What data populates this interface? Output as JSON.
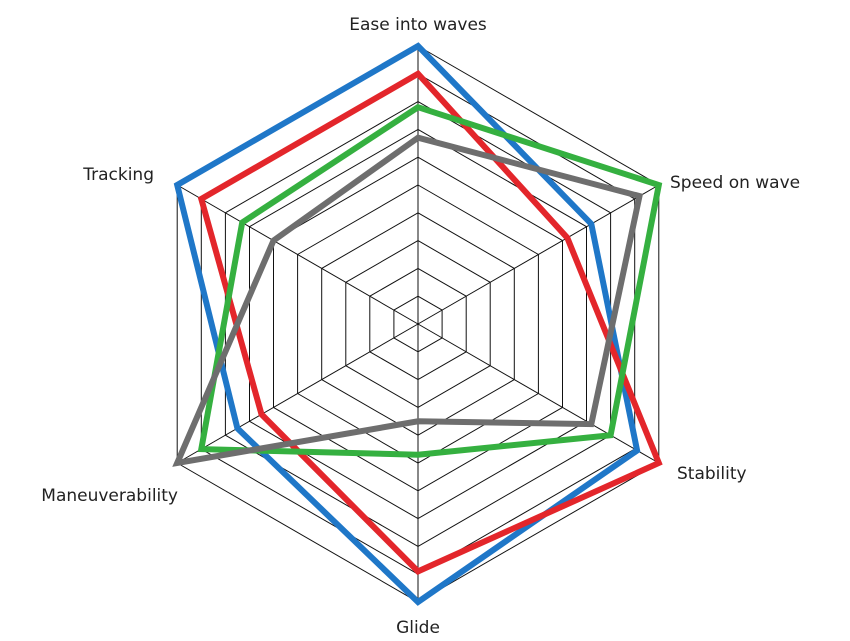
{
  "chart_data": {
    "type": "radar",
    "title": "",
    "axes": [
      "Ease into waves",
      "Speed on wave",
      "Stability",
      "Glide",
      "Maneuverability",
      "Tracking"
    ],
    "range": [
      0,
      10
    ],
    "grid_levels": 10,
    "grid": true,
    "legend": "none",
    "series": [
      {
        "color": "#1f77c8",
        "values": [
          10,
          7.2,
          9.1,
          10,
          7.5,
          10
        ]
      },
      {
        "color": "#e3262b",
        "values": [
          9.0,
          6.2,
          10,
          8.9,
          6.5,
          9.0
        ]
      },
      {
        "color": "#35b040",
        "values": [
          7.8,
          10,
          8.0,
          4.7,
          9.0,
          7.3
        ]
      },
      {
        "color": "#6e6e6e",
        "values": [
          6.7,
          9.2,
          7.2,
          3.5,
          10,
          6.0
        ]
      }
    ]
  }
}
